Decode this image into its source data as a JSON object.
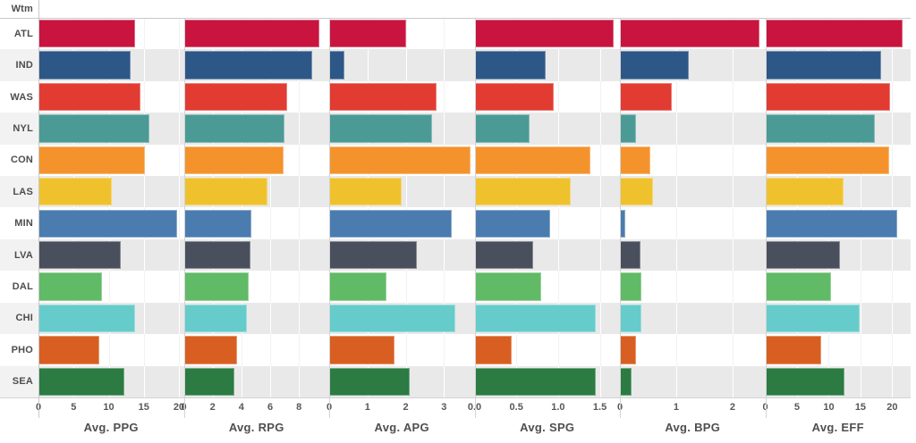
{
  "chart_data": {
    "type": "bar",
    "orientation": "horizontal",
    "row_header": "Wtm",
    "rows": [
      "ATL",
      "IND",
      "WAS",
      "NYL",
      "CON",
      "LAS",
      "MIN",
      "LVA",
      "DAL",
      "CHI",
      "PHO",
      "SEA"
    ],
    "row_colors": [
      "#c8143e",
      "#2d5787",
      "#e13b32",
      "#4b9a95",
      "#f4932c",
      "#efc22d",
      "#4b7cb0",
      "#494f5c",
      "#60ba66",
      "#65cccb",
      "#d85f21",
      "#2b7b43"
    ],
    "legend": "none",
    "grid": "on",
    "panels": [
      {
        "title": "Avg. PPG",
        "axis_range": [
          0,
          20.7
        ],
        "ticks": [
          0,
          5,
          10,
          15,
          20
        ],
        "tick_labels": [
          "0",
          "5",
          "10",
          "15",
          "20"
        ],
        "values": [
          13.7,
          13.1,
          14.5,
          15.8,
          15.2,
          10.4,
          19.8,
          11.7,
          9.0,
          13.7,
          8.7,
          12.2
        ]
      },
      {
        "title": "Avg. RPG",
        "axis_range": [
          0,
          10.1
        ],
        "ticks": [
          0,
          2,
          4,
          6,
          8
        ],
        "tick_labels": [
          "0",
          "2",
          "4",
          "6",
          "8"
        ],
        "values": [
          9.4,
          8.9,
          7.2,
          7.0,
          6.9,
          5.8,
          4.7,
          4.6,
          4.5,
          4.4,
          3.7,
          3.5
        ]
      },
      {
        "title": "Avg. APG",
        "axis_range": [
          0,
          3.8
        ],
        "ticks": [
          0,
          1,
          2,
          3
        ],
        "tick_labels": [
          "0",
          "1",
          "2",
          "3"
        ],
        "values": [
          2.0,
          0.4,
          2.8,
          2.7,
          3.7,
          1.9,
          3.2,
          2.3,
          1.5,
          3.3,
          1.7,
          2.1
        ]
      },
      {
        "title": "Avg. SPG",
        "axis_range": [
          0,
          1.74
        ],
        "ticks": [
          0,
          0.5,
          1.0,
          1.5
        ],
        "tick_labels": [
          "0.0",
          "0.5",
          "1.0",
          "1.5"
        ],
        "values": [
          1.66,
          0.85,
          0.95,
          0.66,
          1.39,
          1.15,
          0.91,
          0.7,
          0.8,
          1.45,
          0.44,
          1.45
        ]
      },
      {
        "title": "Avg. BPG",
        "axis_range": [
          0,
          2.58
        ],
        "ticks": [
          0,
          1,
          2
        ],
        "tick_labels": [
          "0",
          "1",
          "2"
        ],
        "values": [
          2.47,
          1.22,
          0.92,
          0.29,
          0.54,
          0.58,
          0.1,
          0.36,
          0.38,
          0.38,
          0.29,
          0.21
        ]
      },
      {
        "title": "Avg. EFF",
        "axis_range": [
          0,
          22.9
        ],
        "ticks": [
          0,
          5,
          10,
          15,
          20
        ],
        "tick_labels": [
          "0",
          "5",
          "10",
          "15",
          "20"
        ],
        "values": [
          21.6,
          18.2,
          19.6,
          17.3,
          19.5,
          12.3,
          20.8,
          11.7,
          10.4,
          14.8,
          8.8,
          12.5
        ]
      }
    ],
    "style": {
      "band_color_plot": "#e9e9e9",
      "band_color_label_col": "#f2f2f2",
      "grid_on_band": "#ffffff",
      "grid_on_white": "#f2f2f2",
      "header_line_color": "#c9c9c9",
      "separator_color": "#d4d4d4",
      "axis_line_color": "#d4d4d4"
    }
  }
}
